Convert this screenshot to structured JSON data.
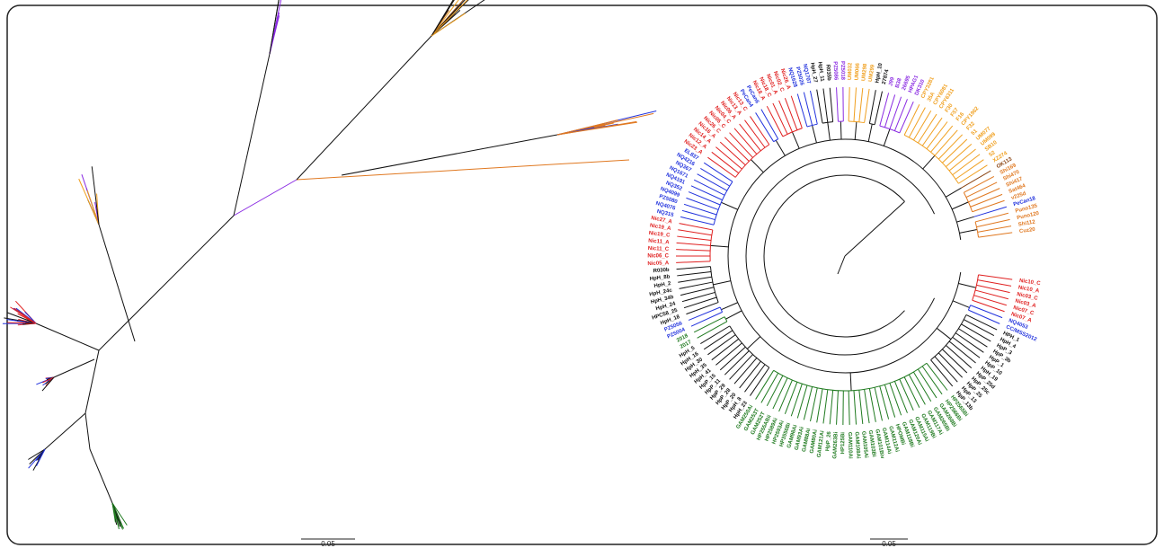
{
  "scale_bars": [
    "0.05",
    "0.05"
  ],
  "circular_tree": {
    "clades": [
      {
        "color": "#e02020",
        "labels": [
          "Nic10_C",
          "Nic10_A",
          "Nic03_C",
          "Nic03_A",
          "Nic07_C",
          "Nic07_A"
        ]
      },
      {
        "color": "#2233dd",
        "labels": [
          "NQ4053",
          "CC/MSS2012"
        ]
      },
      {
        "color": "#111111",
        "labels": [
          "HPH_1",
          "HpH_4",
          "HpP_3",
          "HpP_3b",
          "HpP_1",
          "HpP_10",
          "HpH_19",
          "HpP_25d",
          "HpP_25c",
          "HpP_25",
          "HpP_13",
          "HpP_13b"
        ]
      },
      {
        "color": "#1f7a1f",
        "labels": [
          "HP2565Bi",
          "HP2566Bi",
          "GAM268Bi",
          "GAM265Bi",
          "GAM117Ai",
          "GAM119Bi",
          "GAM115Ai",
          "GAM120Ai",
          "GAM118Bi",
          "HPOMBi",
          "GAM112Ai",
          "GAM114Ai",
          "GAM101Biv",
          "GAM103Bi",
          "GAM105Ai",
          "GAM108Ai",
          "GAM110Ai",
          "HP125Bi",
          "GAM263Bi",
          "HpP_26",
          "GAM121Ai",
          "GAM80Ai",
          "GAM88Ai",
          "GAM93Ai",
          "GAM98Ai",
          "HP3556Bi",
          "HP2593Ai",
          "HP2589Ai",
          "HP255ABii",
          "GAM252T",
          "GAM253T",
          "GAM250Ai"
        ]
      },
      {
        "color": "#111111",
        "labels": [
          "HpH_23",
          "HpH_8",
          "HpP_20",
          "HpP_28",
          "HpP_29",
          "HpP_11",
          "HpP_15",
          "HpH_41",
          "HpH_35",
          "HpH_30",
          "HpH_16",
          "HpH_5"
        ]
      },
      {
        "color": "#1f7a1f",
        "labels": [
          "2017",
          "2018"
        ]
      },
      {
        "color": "#2233dd",
        "labels": [
          "PZ5004",
          "PZ5056"
        ]
      },
      {
        "color": "#111111",
        "labels": [
          "HpH_18",
          "HPC58_25",
          "HpH_24",
          "HpH_34b",
          "HpH_24c",
          "HpH_2",
          "HpH_8b",
          "R030b"
        ]
      },
      {
        "color": "#e02020",
        "labels": [
          "Nic05_A",
          "Nic06_C",
          "Nic11_C",
          "Nic11_A",
          "Nic19_C",
          "Nic19_A",
          "Nic27_A"
        ]
      },
      {
        "color": "#2233dd",
        "labels": [
          "NQ315",
          "NQ4076",
          "PZ5080",
          "NQ4099",
          "NQ352",
          "NQ4191",
          "NQ1671",
          "NQ367",
          "NQ4216",
          "EL837"
        ]
      },
      {
        "color": "#e02020",
        "labels": [
          "Nic23_A",
          "Nic12_A",
          "Nic14_A",
          "Nic16_A",
          "Nic26_C",
          "Nic05_C",
          "Nic04_C",
          "Nic06_A",
          "Nic13_A",
          "Nic13_C"
        ]
      },
      {
        "color": "#2233dd",
        "labels": [
          "PeCan4",
          "PeCan6"
        ]
      },
      {
        "color": "#e02020",
        "labels": [
          "Nic18_A",
          "Nic18_C",
          "Nic01_A",
          "Nic02_C",
          "Nic26_A"
        ]
      },
      {
        "color": "#2233dd",
        "labels": [
          "NQ1628",
          "PZ5026",
          "NQ1707"
        ]
      },
      {
        "color": "#111111",
        "labels": [
          "HpH_27",
          "HpH_11",
          "R035b"
        ]
      },
      {
        "color": "#8a2be2",
        "labels": [
          "PZ5086",
          "PZ5018"
        ]
      },
      {
        "color": "#f0a020",
        "labels": [
          "UM032",
          "UM066",
          "UM298",
          "UM299"
        ]
      },
      {
        "color": "#111111",
        "labels": [
          "HpH_10",
          "27874"
        ]
      },
      {
        "color": "#8a2be2",
        "labels": [
          "J99",
          "B38",
          "26695",
          "HPAG1",
          "DK310"
        ]
      },
      {
        "color": "#f0a020",
        "labels": [
          "CPY3281",
          "35A",
          "CPY6081",
          "CPY6311",
          "F30",
          "F57",
          "F16",
          "CPY1962",
          "F32",
          "51",
          "UM077",
          "UM099",
          "SB10",
          "52",
          "XZ274"
        ]
      },
      {
        "color": "#8b4513",
        "labels": [
          "OK113"
        ]
      },
      {
        "color": "#e07820",
        "labels": [
          "Shi169",
          "Shi470",
          "Shi417",
          "Sat464",
          "v225d"
        ]
      },
      {
        "color": "#2233dd",
        "labels": [
          "PeCan18"
        ]
      },
      {
        "color": "#e07820",
        "labels": [
          "Puno135",
          "Puno120",
          "Shi112",
          "Cuz20"
        ]
      }
    ]
  }
}
